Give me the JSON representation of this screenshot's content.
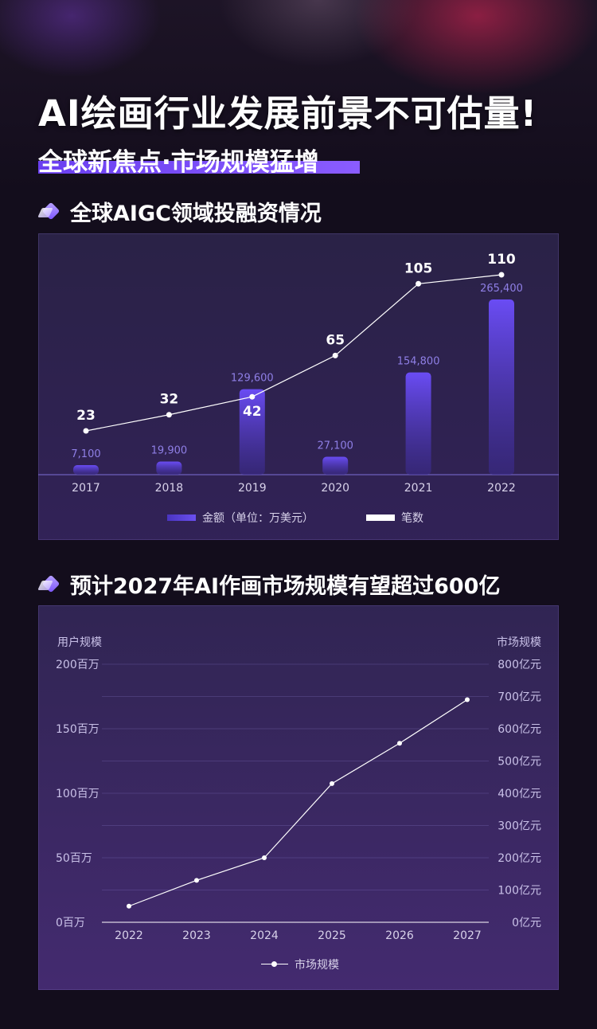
{
  "header": {
    "title": "AI绘画行业发展前景不可估量!",
    "subtitle": "全球新焦点·市场规模猛增"
  },
  "section1": {
    "title": "全球AIGC领域投融资情况"
  },
  "section2": {
    "title": "预计2027年AI作画市场规模有望超过600亿"
  },
  "colors": {
    "accent": "#6a4ff0",
    "bar": "#5a3fe0",
    "line": "#ffffff"
  },
  "chart_data": [
    {
      "type": "bar",
      "categories": [
        "2017",
        "2018",
        "2019",
        "2020",
        "2021",
        "2022"
      ],
      "series": [
        {
          "name": "金额（单位：万美元）",
          "values": [
            7100,
            19900,
            129600,
            27100,
            154800,
            265400
          ],
          "value_labels": [
            "7,100",
            "19,900",
            "129,600",
            "27,100",
            "154,800",
            "265,400"
          ]
        },
        {
          "name": "笔数",
          "type": "line",
          "values": [
            23,
            32,
            42,
            65,
            105,
            110
          ]
        }
      ],
      "legend": "bottom"
    },
    {
      "type": "line",
      "x": [
        "2022",
        "2023",
        "2024",
        "2025",
        "2026",
        "2027"
      ],
      "series": [
        {
          "name": "市场规模",
          "values": [
            50,
            130,
            200,
            430,
            555,
            690
          ]
        }
      ],
      "yleft_label": "用户规模",
      "yleft_ticks": [
        "0百万",
        "50百万",
        "100百万",
        "150百万",
        "200百万"
      ],
      "yright_label": "市场规模",
      "yright_ticks": [
        "0亿元",
        "100亿元",
        "200亿元",
        "300亿元",
        "400亿元",
        "500亿元",
        "600亿元",
        "700亿元",
        "800亿元"
      ],
      "yright_range": [
        0,
        800
      ],
      "grid": true,
      "legend": "bottom"
    }
  ]
}
